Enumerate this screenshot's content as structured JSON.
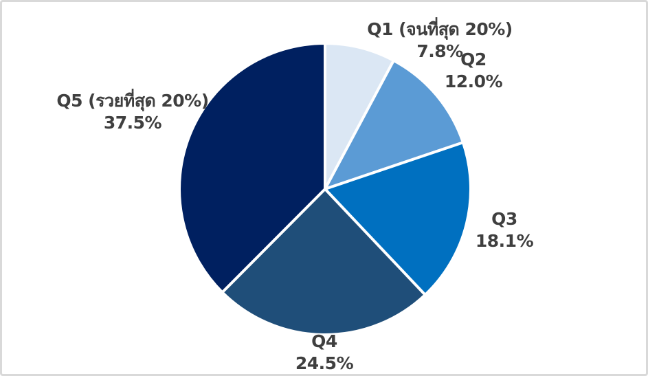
{
  "chart_data": {
    "type": "pie",
    "labels": [
      "Q1 (จนที่สุด 20%)",
      "Q2",
      "Q3",
      "Q4",
      "Q5 (รวยที่สุด 20%)"
    ],
    "values": [
      7.8,
      12.0,
      18.1,
      24.5,
      37.5
    ],
    "value_labels": [
      "7.8%",
      "12.0%",
      "18.1%",
      "24.5%",
      "37.5%"
    ],
    "colors": [
      "#dbe7f4",
      "#5b9bd5",
      "#0070c0",
      "#1f4e79",
      "#002060"
    ],
    "start_angle_deg": 0,
    "direction": "clockwise",
    "title": "",
    "legend_position": "none",
    "grid": false
  },
  "styles": {
    "slice_stroke": "#ffffff",
    "text_color": "#3f3f3f",
    "frame_border": "#d9d9d9",
    "background": "#ffffff"
  }
}
